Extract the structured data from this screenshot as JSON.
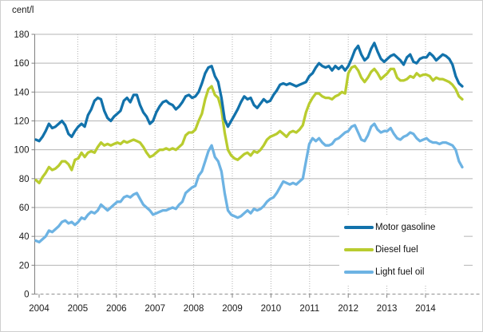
{
  "chart": {
    "unit_label": "cent/l"
  },
  "chart_data": {
    "type": "line",
    "title": "",
    "unit": "cent/l",
    "ylabel": "cent/l",
    "xlabel": "",
    "ylim": [
      0,
      180
    ],
    "yticks": [
      0,
      20,
      40,
      60,
      80,
      100,
      120,
      140,
      160,
      180
    ],
    "grid": true,
    "x_frequency": "monthly",
    "x_range": "Jan 2004 - Dec 2014",
    "categories_years": [
      2004,
      2005,
      2006,
      2007,
      2008,
      2009,
      2010,
      2011,
      2012,
      2013,
      2014
    ],
    "legend_position": "inside-right",
    "series": [
      {
        "name": "Motor gasoline",
        "color": "#1272ab",
        "values": [
          107,
          106,
          109,
          113,
          118,
          115,
          116,
          118,
          120,
          117,
          111,
          109,
          113,
          116,
          118,
          116,
          124,
          128,
          134,
          136,
          135,
          127,
          122,
          120,
          123,
          125,
          127,
          134,
          136,
          133,
          138,
          138,
          131,
          126,
          123,
          118,
          120,
          126,
          130,
          133,
          134,
          132,
          131,
          128,
          130,
          133,
          137,
          138,
          136,
          137,
          140,
          146,
          153,
          157,
          158,
          151,
          147,
          136,
          121,
          116,
          120,
          124,
          128,
          133,
          137,
          135,
          136,
          131,
          129,
          132,
          135,
          133,
          134,
          138,
          141,
          145,
          146,
          145,
          146,
          145,
          144,
          145,
          146,
          147,
          151,
          153,
          157,
          160,
          158,
          157,
          158,
          155,
          158,
          156,
          158,
          155,
          158,
          163,
          169,
          172,
          166,
          162,
          164,
          170,
          174,
          168,
          163,
          161,
          163,
          165,
          166,
          164,
          162,
          159,
          164,
          166,
          161,
          160,
          163,
          164,
          164,
          167,
          165,
          162,
          164,
          166,
          165,
          163,
          159,
          151,
          146,
          144
        ]
      },
      {
        "name": "Diesel fuel",
        "color": "#b9cc2f",
        "values": [
          79,
          77,
          81,
          84,
          88,
          86,
          87,
          89,
          92,
          92,
          90,
          86,
          93,
          94,
          98,
          95,
          98,
          99,
          98,
          102,
          105,
          103,
          104,
          103,
          104,
          105,
          104,
          106,
          105,
          106,
          107,
          106,
          105,
          102,
          98,
          95,
          96,
          98,
          100,
          100,
          101,
          100,
          101,
          100,
          102,
          104,
          110,
          112,
          112,
          114,
          120,
          125,
          135,
          142,
          144,
          138,
          136,
          128,
          112,
          100,
          96,
          94,
          93,
          95,
          97,
          98,
          96,
          99,
          98,
          100,
          103,
          107,
          109,
          110,
          111,
          113,
          111,
          109,
          112,
          113,
          112,
          114,
          117,
          126,
          132,
          136,
          139,
          139,
          137,
          136,
          136,
          135,
          137,
          138,
          140,
          139,
          153,
          157,
          158,
          155,
          150,
          147,
          150,
          154,
          156,
          153,
          149,
          151,
          153,
          156,
          156,
          150,
          148,
          148,
          149,
          151,
          150,
          153,
          151,
          152,
          152,
          151,
          148,
          150,
          149,
          149,
          148,
          147,
          145,
          142,
          137,
          135
        ]
      },
      {
        "name": "Light fuel oil",
        "color": "#6db3e3",
        "values": [
          37,
          36,
          38,
          40,
          44,
          43,
          45,
          47,
          50,
          51,
          49,
          50,
          48,
          50,
          53,
          52,
          55,
          57,
          56,
          58,
          62,
          60,
          58,
          60,
          62,
          64,
          64,
          67,
          68,
          67,
          69,
          70,
          66,
          62,
          60,
          58,
          55,
          56,
          57,
          58,
          58,
          59,
          60,
          59,
          62,
          64,
          70,
          72,
          74,
          75,
          82,
          85,
          92,
          99,
          103,
          95,
          92,
          85,
          70,
          58,
          55,
          54,
          53,
          54,
          56,
          58,
          56,
          59,
          58,
          59,
          61,
          64,
          66,
          67,
          70,
          74,
          78,
          77,
          76,
          77,
          76,
          78,
          80,
          92,
          104,
          108,
          106,
          108,
          105,
          103,
          103,
          104,
          107,
          108,
          110,
          112,
          113,
          116,
          117,
          112,
          107,
          106,
          110,
          116,
          118,
          114,
          112,
          113,
          113,
          115,
          111,
          108,
          107,
          109,
          110,
          112,
          111,
          108,
          106,
          107,
          108,
          106,
          105,
          105,
          104,
          105,
          105,
          104,
          103,
          100,
          92,
          88
        ]
      }
    ]
  }
}
